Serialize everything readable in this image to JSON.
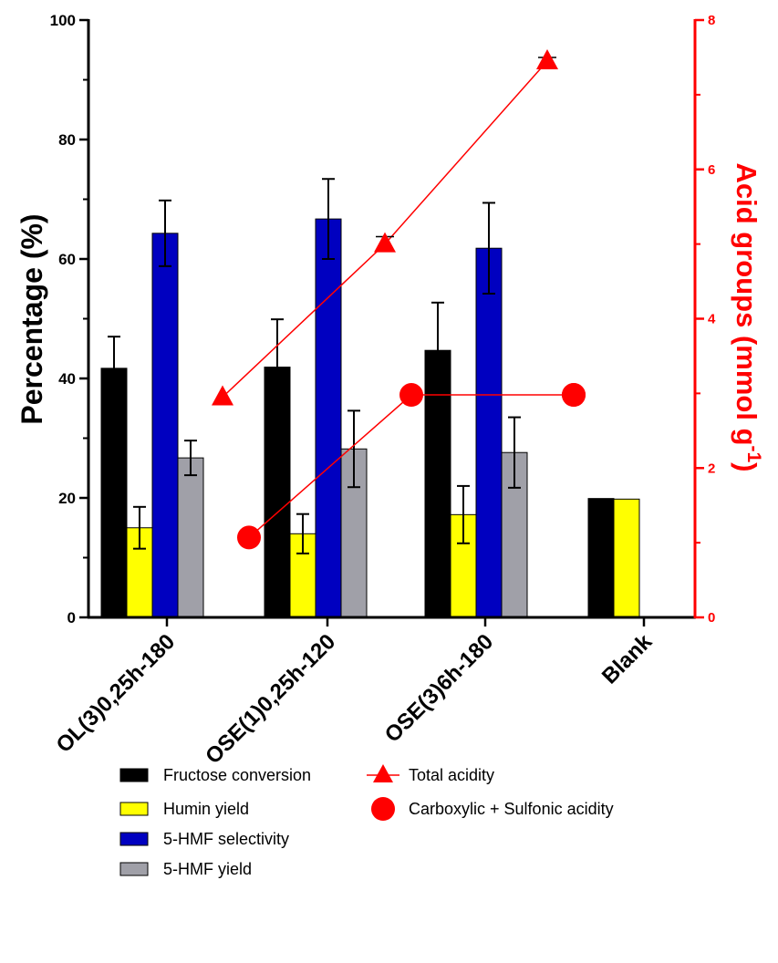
{
  "chart_data": {
    "type": "bar",
    "categories": [
      "OL(3)0,25h-180",
      "OSE(1)0,25h-120",
      "OSE(3)6h-180",
      "Blank"
    ],
    "ylabel": "Percentage (%)",
    "ylabel_right_main": "Acid groups (mmol g",
    "ylabel_right_sup": "-1",
    "ylabel_right_close": ")",
    "ylim": [
      0,
      100
    ],
    "yticks": [
      0,
      20,
      40,
      60,
      80,
      100
    ],
    "ylim_right": [
      0,
      8
    ],
    "yticks_right": [
      0,
      2,
      4,
      6,
      8
    ],
    "series": [
      {
        "name": "Fructose conversion",
        "color": "#000000",
        "values": [
          41.7,
          41.9,
          44.7,
          19.9
        ],
        "errors": [
          5.3,
          8.0,
          8.0,
          null
        ]
      },
      {
        "name": "Humin yield",
        "color": "#ffff00",
        "values": [
          15.0,
          14.0,
          17.2,
          19.8
        ],
        "errors": [
          3.5,
          3.3,
          4.8,
          null
        ]
      },
      {
        "name": "5-HMF selectivity",
        "color": "#0000c0",
        "values": [
          64.3,
          66.7,
          61.8,
          null
        ],
        "errors": [
          5.5,
          6.7,
          7.6,
          null
        ]
      },
      {
        "name": "5-HMF yield",
        "color": "#a0a0a8",
        "values": [
          26.7,
          28.2,
          27.6,
          null
        ],
        "errors": [
          2.9,
          6.4,
          5.9,
          null
        ]
      }
    ],
    "line_series": [
      {
        "name": "Total acidity",
        "color": "#ff0000",
        "marker": "triangle",
        "values": [
          2.95,
          5.0,
          7.45,
          null
        ],
        "errors": [
          null,
          0.1,
          0.05,
          null
        ]
      },
      {
        "name": "Carboxylic + Sulfonic acidity",
        "color": "#ff0000",
        "marker": "circle",
        "values": [
          1.07,
          2.98,
          2.98,
          2.98
        ]
      }
    ],
    "legend": [
      "Fructose conversion",
      "Humin yield",
      "5-HMF selectivity",
      "5-HMF yield",
      "Total acidity",
      "Carboxylic + Sulfonic acidity"
    ]
  }
}
